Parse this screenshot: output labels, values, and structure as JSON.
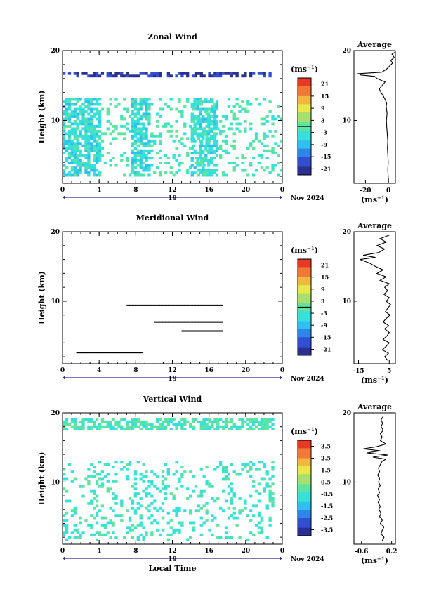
{
  "chart_data": [
    {
      "type": "heatmap",
      "title": "Zonal Wind",
      "ylabel": "Height (km)",
      "xlabel": "",
      "xlim": [
        0,
        24
      ],
      "ylim": [
        1,
        20
      ],
      "x_ticks": [
        "0",
        "4",
        "8",
        "12",
        "16",
        "20",
        "0"
      ],
      "y_ticks": [
        "10",
        "20"
      ],
      "date_day": "19",
      "date_month": "Nov 2024",
      "colorbar": {
        "unit": "(ms",
        "unit_exp": "−1",
        "unit_close": ")",
        "range": [
          -24,
          24
        ],
        "ticks": [
          "21",
          "15",
          "9",
          "3",
          "-3",
          "-9",
          "-15",
          "-21"
        ],
        "zero_line": true
      },
      "features": [
        {
          "x_range": [
            0,
            23
          ],
          "y_range": [
            16.2,
            16.8
          ],
          "value": -20
        },
        {
          "x_range": [
            0,
            4
          ],
          "y_range": [
            2,
            13
          ],
          "value": -6
        },
        {
          "x_range": [
            7.5,
            9.5
          ],
          "y_range": [
            2,
            13
          ],
          "value": -6
        },
        {
          "x_range": [
            14,
            17
          ],
          "y_range": [
            2,
            13
          ],
          "value": -5
        },
        {
          "x_range": [
            0,
            24
          ],
          "y_range": [
            2,
            13
          ],
          "value": -2
        }
      ],
      "average": {
        "title": "Average",
        "xlim": [
          -30,
          6
        ],
        "x_ticks": [
          "-20",
          "0"
        ],
        "xlabel": "(ms",
        "xlabel_exp": "−1",
        "xlabel_close": ")",
        "profile": [
          [
            0.0,
            1.5
          ],
          [
            -0.3,
            2.0
          ],
          [
            -0.6,
            3.0
          ],
          [
            -0.2,
            4.0
          ],
          [
            -0.5,
            5.0
          ],
          [
            -0.9,
            6.0
          ],
          [
            -0.6,
            7.0
          ],
          [
            -1.0,
            8.0
          ],
          [
            -1.5,
            9.0
          ],
          [
            -1.8,
            10.0
          ],
          [
            -1.2,
            11.0
          ],
          [
            -2.0,
            12.0
          ],
          [
            -1.5,
            12.5
          ],
          [
            -3.0,
            13.0
          ],
          [
            -4.5,
            13.5
          ],
          [
            -6.5,
            14.0
          ],
          [
            -8.0,
            14.5
          ],
          [
            -5.5,
            15.0
          ],
          [
            -3.0,
            15.5
          ],
          [
            -10.0,
            16.0
          ],
          [
            -12.0,
            16.3
          ],
          [
            -24.0,
            16.5
          ],
          [
            -26.0,
            16.7
          ],
          [
            -6.0,
            16.9
          ],
          [
            -2.0,
            17.3
          ],
          [
            1.0,
            17.8
          ],
          [
            3.5,
            18.2
          ],
          [
            2.0,
            18.6
          ],
          [
            5.0,
            19.0
          ],
          [
            3.0,
            19.5
          ],
          [
            6.0,
            19.8
          ]
        ]
      }
    },
    {
      "type": "heatmap",
      "title": "Meridional Wind",
      "ylabel": "Height (km)",
      "xlabel": "",
      "xlim": [
        0,
        24
      ],
      "ylim": [
        1,
        20
      ],
      "x_ticks": [
        "0",
        "4",
        "8",
        "12",
        "16",
        "20",
        "0"
      ],
      "y_ticks": [
        "10",
        "20"
      ],
      "date_day": "19",
      "date_month": "Nov 2024",
      "colorbar": {
        "unit": "(ms",
        "unit_exp": "−1",
        "unit_close": ")",
        "range": [
          -24,
          24
        ],
        "ticks": [
          "21",
          "15",
          "9",
          "3",
          "-3",
          "-9",
          "-15",
          "-21"
        ],
        "zero_line": true
      },
      "features": [
        {
          "x_range": [
            1.5,
            8.5
          ],
          "y_range": [
            2.5,
            2.7
          ],
          "value": 0
        },
        {
          "x_range": [
            7,
            17.5
          ],
          "y_range": [
            9.3,
            9.5
          ],
          "value": 0
        },
        {
          "x_range": [
            10,
            17.5
          ],
          "y_range": [
            6.9,
            7.1
          ],
          "value": 0
        },
        {
          "x_range": [
            13,
            17.5
          ],
          "y_range": [
            5.6,
            5.8
          ],
          "value": 0
        }
      ],
      "average": {
        "title": "Average",
        "xlim": [
          -18,
          9
        ],
        "x_ticks": [
          "-15",
          "5"
        ],
        "xlabel": "(ms",
        "xlabel_exp": "−1",
        "xlabel_close": ")",
        "profile": [
          [
            4.0,
            1.5
          ],
          [
            2.0,
            2.0
          ],
          [
            4.5,
            2.5
          ],
          [
            0.5,
            3.0
          ],
          [
            3.0,
            3.5
          ],
          [
            5.0,
            4.0
          ],
          [
            1.0,
            4.5
          ],
          [
            3.5,
            5.0
          ],
          [
            5.0,
            5.5
          ],
          [
            2.0,
            6.0
          ],
          [
            4.5,
            6.5
          ],
          [
            1.0,
            7.0
          ],
          [
            3.0,
            7.5
          ],
          [
            5.5,
            8.0
          ],
          [
            2.5,
            8.5
          ],
          [
            4.0,
            9.0
          ],
          [
            6.0,
            9.5
          ],
          [
            3.0,
            10.0
          ],
          [
            5.0,
            10.5
          ],
          [
            1.5,
            11.0
          ],
          [
            4.0,
            11.5
          ],
          [
            2.0,
            12.0
          ],
          [
            5.0,
            12.5
          ],
          [
            -1.0,
            13.0
          ],
          [
            3.0,
            13.5
          ],
          [
            -3.0,
            14.0
          ],
          [
            1.0,
            14.5
          ],
          [
            -4.0,
            15.0
          ],
          [
            -8.0,
            15.5
          ],
          [
            -14.0,
            16.0
          ],
          [
            -4.0,
            16.3
          ],
          [
            -12.0,
            16.6
          ],
          [
            -2.0,
            17.0
          ],
          [
            2.0,
            17.5
          ],
          [
            -3.0,
            18.0
          ],
          [
            3.0,
            18.5
          ],
          [
            -1.0,
            19.0
          ],
          [
            5.0,
            19.5
          ]
        ]
      }
    },
    {
      "type": "heatmap",
      "title": "Vertical Wind",
      "ylabel": "Height (km)",
      "xlabel": "Local Time",
      "xlim": [
        0,
        24
      ],
      "ylim": [
        1,
        20
      ],
      "x_ticks": [
        "0",
        "4",
        "8",
        "12",
        "16",
        "20",
        "0"
      ],
      "y_ticks": [
        "10",
        "20"
      ],
      "date_day": "19",
      "date_month": "Nov 2024",
      "colorbar": {
        "unit": "(ms",
        "unit_exp": "−1",
        "unit_close": ")",
        "range": [
          -4,
          4
        ],
        "ticks": [
          "3.5",
          "2.5",
          "1.5",
          "0.5",
          "-0.5",
          "-1.5",
          "-2.5",
          "-3.5"
        ],
        "zero_line": false
      },
      "features": [
        {
          "x_range": [
            0,
            23
          ],
          "y_range": [
            17.5,
            19.2
          ],
          "value": -0.3
        },
        {
          "x_range": [
            0,
            23
          ],
          "y_range": [
            1.5,
            13
          ],
          "value": -0.6
        }
      ],
      "average": {
        "title": "Average",
        "xlim": [
          -0.8,
          0.3
        ],
        "x_ticks": [
          "-0.6",
          "0.2"
        ],
        "xlabel": "(ms",
        "xlabel_exp": "−1",
        "xlabel_close": ")",
        "profile": [
          [
            -0.05,
            1.5
          ],
          [
            0.0,
            2.0
          ],
          [
            -0.08,
            2.5
          ],
          [
            -0.05,
            3.0
          ],
          [
            0.0,
            3.5
          ],
          [
            -0.1,
            4.0
          ],
          [
            -0.04,
            4.5
          ],
          [
            -0.12,
            5.0
          ],
          [
            -0.08,
            5.5
          ],
          [
            -0.14,
            6.0
          ],
          [
            -0.1,
            6.5
          ],
          [
            -0.16,
            7.0
          ],
          [
            -0.12,
            7.5
          ],
          [
            -0.18,
            8.0
          ],
          [
            -0.12,
            8.5
          ],
          [
            -0.16,
            9.0
          ],
          [
            -0.1,
            9.5
          ],
          [
            -0.15,
            10.0
          ],
          [
            -0.12,
            10.5
          ],
          [
            -0.17,
            11.0
          ],
          [
            -0.12,
            11.5
          ],
          [
            -0.15,
            12.0
          ],
          [
            -0.1,
            12.5
          ],
          [
            -0.05,
            13.0
          ],
          [
            0.05,
            13.3
          ],
          [
            -0.3,
            13.6
          ],
          [
            0.1,
            13.9
          ],
          [
            -0.45,
            14.2
          ],
          [
            -0.1,
            14.5
          ],
          [
            -0.55,
            14.8
          ],
          [
            -0.2,
            15.1
          ],
          [
            0.05,
            15.5
          ],
          [
            -0.1,
            16.0
          ],
          [
            -0.05,
            16.5
          ],
          [
            -0.1,
            17.0
          ],
          [
            -0.02,
            17.5
          ],
          [
            -0.08,
            18.0
          ],
          [
            -0.04,
            18.5
          ],
          [
            -0.08,
            19.0
          ],
          [
            -0.02,
            19.5
          ]
        ]
      }
    }
  ]
}
